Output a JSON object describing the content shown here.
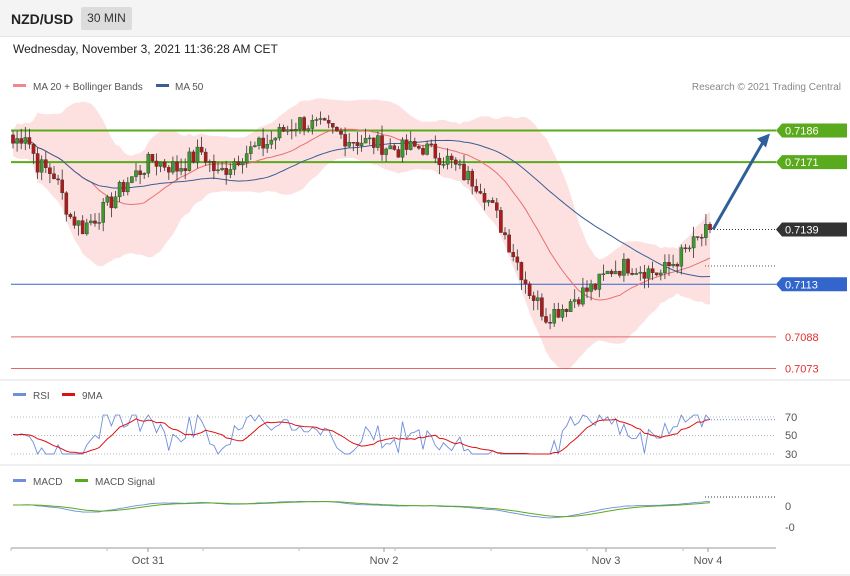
{
  "header": {
    "symbol": "NZD/USD",
    "timeframe": "30 MIN"
  },
  "datetime": "Wednesday, November 3, 2021 11:36:28 AM CET",
  "attribution": "Research © 2021 Trading Central",
  "colors": {
    "up": "#3c9a2e",
    "down": "#b11a1a",
    "ma20": "#e87070",
    "ma50": "#3a5e94",
    "band": "#fde1e1",
    "resistance": "#5aaa1e",
    "support": "#3366cc",
    "target": "#e03030",
    "arrow": "#2f5f9b",
    "rsi": "#6f8edb",
    "rsi_ma": "#e01010",
    "macd": "#6f8edb",
    "signal": "#5aaa1e"
  },
  "chart_data": [
    {
      "type": "candlestick",
      "title": "NZD/USD 30 MIN",
      "legend": [
        "MA 20 + Bollinger Bands",
        "MA 50"
      ],
      "price_levels": [
        {
          "value": 0.7186,
          "label": "0.7186",
          "kind": "resistance"
        },
        {
          "value": 0.7171,
          "label": "0.7171",
          "kind": "resistance"
        },
        {
          "value": 0.7139,
          "label": "0.7139",
          "kind": "last"
        },
        {
          "value": 0.7113,
          "label": "0.7113",
          "kind": "support"
        },
        {
          "value": 0.7088,
          "label": "0.7088",
          "kind": "target"
        },
        {
          "value": 0.7073,
          "label": "0.7073",
          "kind": "target"
        }
      ],
      "anchors": [
        {
          "i": 0,
          "p": 0.718
        },
        {
          "i": 3,
          "p": 0.7185
        },
        {
          "i": 6,
          "p": 0.717
        },
        {
          "i": 10,
          "p": 0.7165
        },
        {
          "i": 14,
          "p": 0.7145
        },
        {
          "i": 17,
          "p": 0.714
        },
        {
          "i": 22,
          "p": 0.7148
        },
        {
          "i": 28,
          "p": 0.7162
        },
        {
          "i": 34,
          "p": 0.7172
        },
        {
          "i": 40,
          "p": 0.7168
        },
        {
          "i": 46,
          "p": 0.7176
        },
        {
          "i": 50,
          "p": 0.7165
        },
        {
          "i": 56,
          "p": 0.7175
        },
        {
          "i": 62,
          "p": 0.718
        },
        {
          "i": 66,
          "p": 0.7186
        },
        {
          "i": 70,
          "p": 0.719
        },
        {
          "i": 76,
          "p": 0.7187
        },
        {
          "i": 82,
          "p": 0.7182
        },
        {
          "i": 88,
          "p": 0.718
        },
        {
          "i": 94,
          "p": 0.7177
        },
        {
          "i": 100,
          "p": 0.7178
        },
        {
          "i": 106,
          "p": 0.7172
        },
        {
          "i": 110,
          "p": 0.7165
        },
        {
          "i": 114,
          "p": 0.716
        },
        {
          "i": 118,
          "p": 0.7145
        },
        {
          "i": 122,
          "p": 0.7128
        },
        {
          "i": 126,
          "p": 0.711
        },
        {
          "i": 130,
          "p": 0.7098
        },
        {
          "i": 134,
          "p": 0.7102
        },
        {
          "i": 138,
          "p": 0.7108
        },
        {
          "i": 142,
          "p": 0.7112
        },
        {
          "i": 146,
          "p": 0.712
        },
        {
          "i": 150,
          "p": 0.7122
        },
        {
          "i": 154,
          "p": 0.712
        },
        {
          "i": 158,
          "p": 0.7118
        },
        {
          "i": 162,
          "p": 0.7125
        },
        {
          "i": 166,
          "p": 0.7132
        },
        {
          "i": 170,
          "p": 0.7139
        }
      ],
      "forecast_arrow": {
        "from": 0.7139,
        "to": 0.7186
      }
    },
    {
      "type": "line",
      "series": [
        {
          "name": "RSI"
        },
        {
          "name": "9MA"
        }
      ],
      "y_ticks": [
        "70",
        "50",
        "30"
      ],
      "ylim": [
        20,
        80
      ]
    },
    {
      "type": "line",
      "series": [
        {
          "name": "MACD"
        },
        {
          "name": "MACD Signal"
        }
      ],
      "y_ticks": [
        "0",
        "-0"
      ]
    }
  ],
  "x_axis": {
    "ticks": [
      "Oct 31",
      "Nov 2",
      "Nov 3",
      "Nov 4"
    ]
  }
}
